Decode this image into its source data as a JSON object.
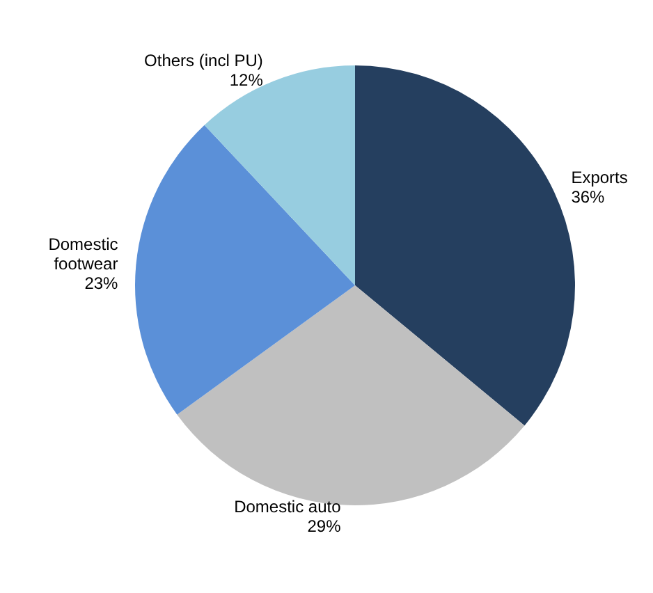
{
  "chart_data": {
    "type": "pie",
    "categories": [
      "Exports",
      "Domestic auto",
      "Domestic\nfootwear",
      "Others (incl PU)"
    ],
    "values": [
      36,
      29,
      23,
      12
    ],
    "value_labels": [
      "36%",
      "29%",
      "23%",
      "12%"
    ],
    "colors": [
      "#253f5f",
      "#c0c0c0",
      "#5b90d8",
      "#97cde0"
    ],
    "legend": false
  }
}
